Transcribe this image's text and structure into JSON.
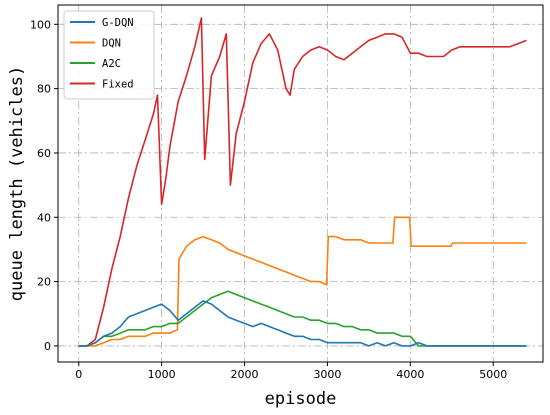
{
  "chart_data": {
    "type": "line",
    "xlabel": "episode",
    "ylabel": "queue length (vehicles)",
    "xlim": [
      -250,
      5600
    ],
    "ylim": [
      -5,
      106
    ],
    "x_ticks": [
      0,
      1000,
      2000,
      3000,
      4000,
      5000
    ],
    "y_ticks": [
      0,
      20,
      40,
      60,
      80,
      100
    ],
    "grid": true,
    "grid_style": "dash-dot",
    "legend_position": "top-left",
    "series": [
      {
        "name": "G-DQN",
        "color": "#1f77b4",
        "x": [
          0,
          100,
          200,
          300,
          400,
          500,
          600,
          700,
          800,
          900,
          1000,
          1100,
          1200,
          1300,
          1400,
          1500,
          1600,
          1700,
          1800,
          1900,
          2000,
          2100,
          2200,
          2300,
          2400,
          2500,
          2600,
          2700,
          2800,
          2900,
          3000,
          3100,
          3200,
          3300,
          3400,
          3500,
          3600,
          3700,
          3800,
          3900,
          4000,
          4100,
          4200,
          4300,
          4400,
          4500,
          4600,
          4700,
          4800,
          4900,
          5000,
          5100,
          5200,
          5300,
          5400
        ],
        "values": [
          0,
          0,
          1,
          3,
          4,
          6,
          9,
          10,
          11,
          12,
          13,
          11,
          8,
          10,
          12,
          14,
          13,
          11,
          9,
          8,
          7,
          6,
          7,
          6,
          5,
          4,
          3,
          3,
          2,
          2,
          1,
          1,
          1,
          1,
          1,
          0,
          1,
          0,
          1,
          0,
          0,
          1,
          0,
          0,
          0,
          0,
          0,
          0,
          0,
          0,
          0,
          0,
          0,
          0,
          0
        ]
      },
      {
        "name": "DQN",
        "color": "#ff7f0e",
        "x": [
          0,
          100,
          200,
          300,
          400,
          500,
          600,
          700,
          800,
          900,
          1000,
          1100,
          1190,
          1210,
          1300,
          1400,
          1500,
          1600,
          1700,
          1800,
          1900,
          2000,
          2100,
          2200,
          2300,
          2400,
          2500,
          2600,
          2700,
          2800,
          2900,
          2990,
          3010,
          3100,
          3200,
          3300,
          3400,
          3500,
          3600,
          3700,
          3790,
          3810,
          3900,
          3990,
          4010,
          4100,
          4200,
          4300,
          4400,
          4490,
          4510,
          4600,
          4700,
          4800,
          4900,
          5000,
          5100,
          5200,
          5300,
          5400
        ],
        "values": [
          0,
          0,
          0,
          1,
          2,
          2,
          3,
          3,
          3,
          4,
          4,
          4,
          5,
          27,
          31,
          33,
          34,
          33,
          32,
          30,
          29,
          28,
          27,
          26,
          25,
          24,
          23,
          22,
          21,
          20,
          20,
          19,
          34,
          34,
          33,
          33,
          33,
          32,
          32,
          32,
          32,
          40,
          40,
          40,
          31,
          31,
          31,
          31,
          31,
          31,
          32,
          32,
          32,
          32,
          32,
          32,
          32,
          32,
          32,
          32
        ]
      },
      {
        "name": "A2C",
        "color": "#2ca02c",
        "x": [
          0,
          100,
          200,
          300,
          400,
          500,
          600,
          700,
          800,
          900,
          1000,
          1100,
          1200,
          1300,
          1400,
          1500,
          1600,
          1700,
          1800,
          1900,
          2000,
          2100,
          2200,
          2300,
          2400,
          2500,
          2600,
          2700,
          2800,
          2900,
          3000,
          3100,
          3200,
          3300,
          3400,
          3500,
          3600,
          3700,
          3800,
          3900,
          4000,
          4100,
          4200,
          4300,
          4400,
          4500,
          4600,
          4700,
          4800,
          4900,
          5000,
          5100,
          5200,
          5300,
          5400
        ],
        "values": [
          0,
          0,
          1,
          3,
          3,
          4,
          5,
          5,
          5,
          6,
          6,
          7,
          7,
          9,
          11,
          13,
          15,
          16,
          17,
          16,
          15,
          14,
          13,
          12,
          11,
          10,
          9,
          9,
          8,
          8,
          7,
          7,
          6,
          6,
          5,
          5,
          4,
          4,
          4,
          3,
          3,
          0,
          0,
          0,
          0,
          0,
          0,
          0,
          0,
          0,
          0,
          0,
          0,
          0,
          0
        ]
      },
      {
        "name": "Fixed",
        "color": "#d62728",
        "x": [
          0,
          100,
          200,
          300,
          400,
          500,
          600,
          700,
          800,
          900,
          950,
          1000,
          1050,
          1100,
          1200,
          1300,
          1400,
          1480,
          1520,
          1600,
          1700,
          1780,
          1830,
          1900,
          2000,
          2100,
          2200,
          2300,
          2400,
          2500,
          2550,
          2600,
          2700,
          2800,
          2900,
          3000,
          3100,
          3200,
          3300,
          3400,
          3500,
          3600,
          3700,
          3800,
          3900,
          4000,
          4100,
          4200,
          4300,
          4400,
          4500,
          4600,
          4700,
          4800,
          4900,
          5000,
          5100,
          5200,
          5300,
          5400
        ],
        "values": [
          0,
          0,
          2,
          12,
          24,
          34,
          46,
          56,
          64,
          72,
          78,
          44,
          52,
          62,
          76,
          84,
          93,
          102,
          58,
          84,
          90,
          97,
          50,
          66,
          76,
          88,
          94,
          97,
          92,
          80,
          78,
          86,
          90,
          92,
          93,
          92,
          90,
          89,
          91,
          93,
          95,
          96,
          97,
          97,
          96,
          91,
          91,
          90,
          90,
          90,
          92,
          93,
          93,
          93,
          93,
          93,
          93,
          93,
          94,
          95
        ]
      }
    ]
  }
}
